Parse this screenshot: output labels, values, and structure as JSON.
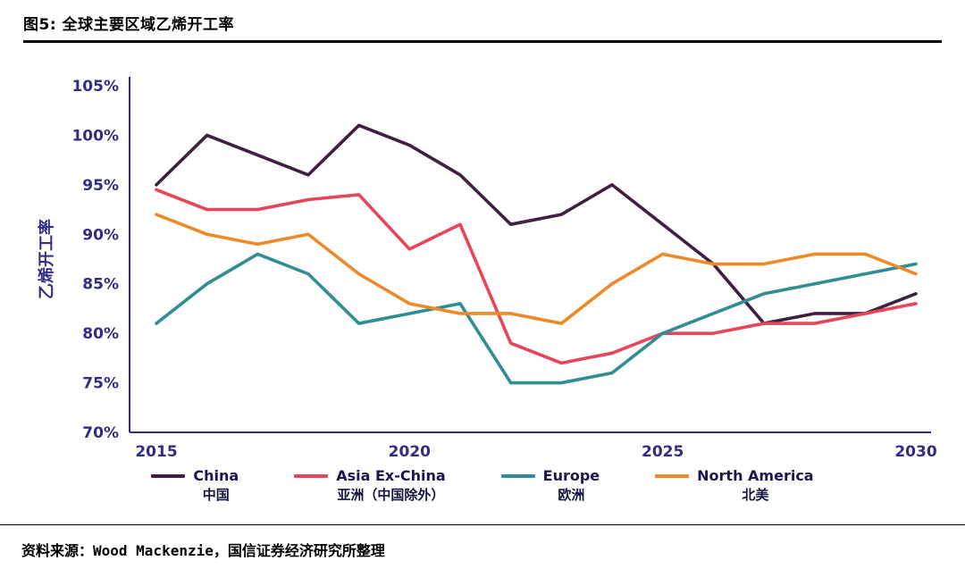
{
  "header": {
    "title": "图5: 全球主要区域乙烯开工率"
  },
  "footer": {
    "source": "资料来源：Wood Mackenzie，国信证券经济研究所整理"
  },
  "chart_data": {
    "type": "line",
    "title": "图5: 全球主要区域乙烯开工率",
    "xlabel": "",
    "ylabel": "乙烯开工率",
    "x": [
      2015,
      2016,
      2017,
      2018,
      2019,
      2020,
      2021,
      2022,
      2023,
      2024,
      2025,
      2026,
      2027,
      2028,
      2029,
      2030
    ],
    "x_tick_labels": [
      "2015",
      "2020",
      "2025",
      "2030"
    ],
    "ylim": [
      70,
      105
    ],
    "y_tick_step": 5,
    "y_tick_suffix": "%",
    "grid": false,
    "legend_position": "bottom",
    "axis_color": "#312d84",
    "series": [
      {
        "name": "China",
        "name_cn": "中国",
        "color": "#3f2040",
        "values": [
          95,
          100,
          98,
          96,
          101,
          99,
          96,
          91,
          92,
          95,
          91,
          87,
          81,
          82,
          82,
          84
        ]
      },
      {
        "name": "Asia Ex-China",
        "name_cn": "亚洲（中国除外）",
        "color": "#e6455a",
        "values": [
          94.5,
          92.5,
          92.5,
          93.5,
          94,
          88.5,
          91,
          79,
          77,
          78,
          80,
          80,
          81,
          81,
          82,
          83
        ]
      },
      {
        "name": "Europe",
        "name_cn": "欧洲",
        "color": "#2f8d93",
        "values": [
          81,
          85,
          88,
          86,
          81,
          82,
          83,
          75,
          75,
          76,
          80,
          82,
          84,
          85,
          86,
          87
        ]
      },
      {
        "name": "North America",
        "name_cn": "北美",
        "color": "#ed8a27",
        "values": [
          92,
          90,
          89,
          90,
          86,
          83,
          82,
          82,
          81,
          85,
          88,
          87,
          87,
          88,
          88,
          86
        ]
      }
    ]
  }
}
